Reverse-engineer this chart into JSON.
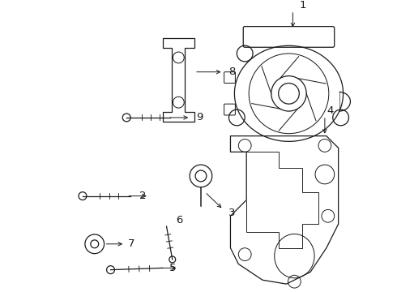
{
  "bg_color": "#ffffff",
  "line_color": "#1a1a1a",
  "lw": 0.9,
  "label_fontsize": 8.5
}
